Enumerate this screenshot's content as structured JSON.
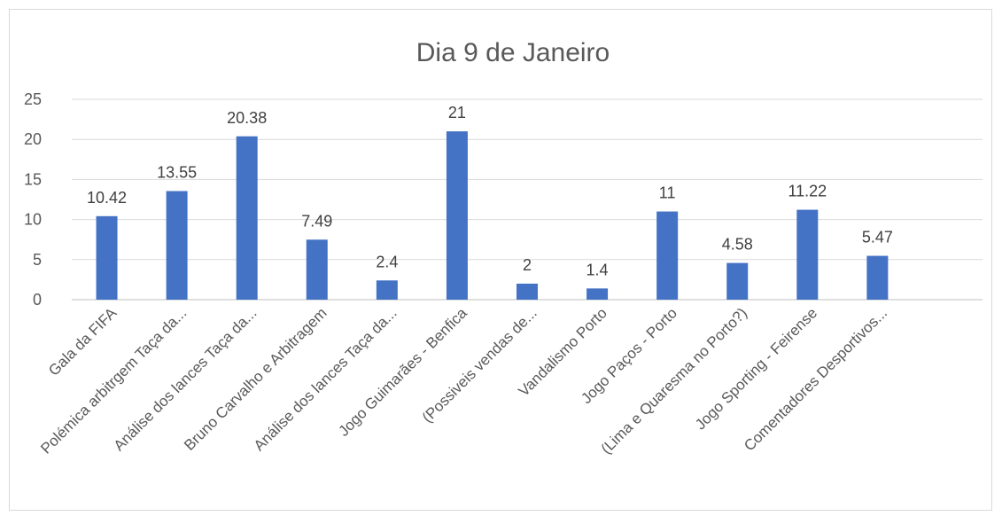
{
  "chart_data": {
    "type": "bar",
    "title": "Dia 9 de Janeiro",
    "xlabel": "",
    "ylabel": "",
    "ylim": [
      0,
      25
    ],
    "yticks": [
      "0",
      "5",
      "10",
      "15",
      "20",
      "25"
    ],
    "grid": true,
    "legend": "none",
    "bar_color": "#4472c4",
    "categories": [
      "Gala da FIFA",
      "Polémica arbitrgem Taça da...",
      "Análise dos lances Taça da...",
      "Bruno Carvalho e Arbitragem",
      "Análise dos lances Taça da...",
      "Jogo Guimarães - Benfica",
      "(Possiveis vendas de...",
      "Vandalismo Porto",
      "Jogo Paços - Porto",
      "(Lima e Quaresma no Porto?)",
      "Jogo Sporting - Feirense",
      "Comentadores Desportivos..."
    ],
    "values": [
      10.42,
      13.55,
      20.38,
      7.49,
      2.4,
      21,
      2,
      1.4,
      11,
      4.58,
      11.22,
      5.47
    ],
    "data_labels": [
      "10.42",
      "13.55",
      "20.38",
      "7.49",
      "2.4",
      "21",
      "2",
      "1.4",
      "11",
      "4.58",
      "11.22",
      "5.47"
    ]
  }
}
